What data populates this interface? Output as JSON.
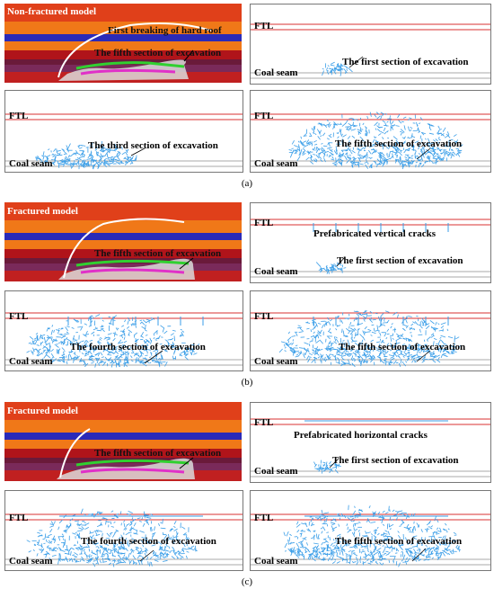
{
  "groups": [
    {
      "caption": "(a)",
      "model_label": "Non-fractured model",
      "model_annotations": [
        "First breaking of hard roof",
        "The fifth section of excavation"
      ],
      "panels": [
        {
          "ftl": "FTL",
          "coal": "Coal seam",
          "section": "The first section of excavation"
        },
        {
          "ftl": "FTL",
          "coal": "Coal seam",
          "section": "The third section of excavation"
        },
        {
          "ftl": "FTL",
          "coal": "Coal seam",
          "section": "The fifth section of excavation"
        }
      ]
    },
    {
      "caption": "(b)",
      "model_label": "Fractured model",
      "model_annotations": [
        "The fifth section of excavation"
      ],
      "prefab_label": "Prefabricated vertical cracks",
      "panels": [
        {
          "ftl": "FTL",
          "coal": "Coal seam",
          "section": "The first section of excavation"
        },
        {
          "ftl": "FTL",
          "coal": "Coal seam",
          "section": "The fourth section of excavation"
        },
        {
          "ftl": "FTL",
          "coal": "Coal seam",
          "section": "The fifth section of excavation"
        }
      ]
    },
    {
      "caption": "(c)",
      "model_label": "Fractured model",
      "model_annotations": [
        "The fifth section of excavation"
      ],
      "prefab_label": "Prefabricated horizontal cracks",
      "panels": [
        {
          "ftl": "FTL",
          "coal": "Coal seam",
          "section": "The first section of excavation"
        },
        {
          "ftl": "FTL",
          "coal": "Coal seam",
          "section": "The fourth section of excavation"
        },
        {
          "ftl": "FTL",
          "coal": "Coal seam",
          "section": "The fifth section of excavation"
        }
      ]
    }
  ],
  "colors": {
    "red": "#e0401a",
    "orange": "#f07818",
    "blue": "#2a2ab8",
    "darkred": "#b0141a",
    "magenta": "#e030c8",
    "green": "#38c838",
    "crack": "#3a9ee8",
    "ftl_line": "#d83030"
  }
}
